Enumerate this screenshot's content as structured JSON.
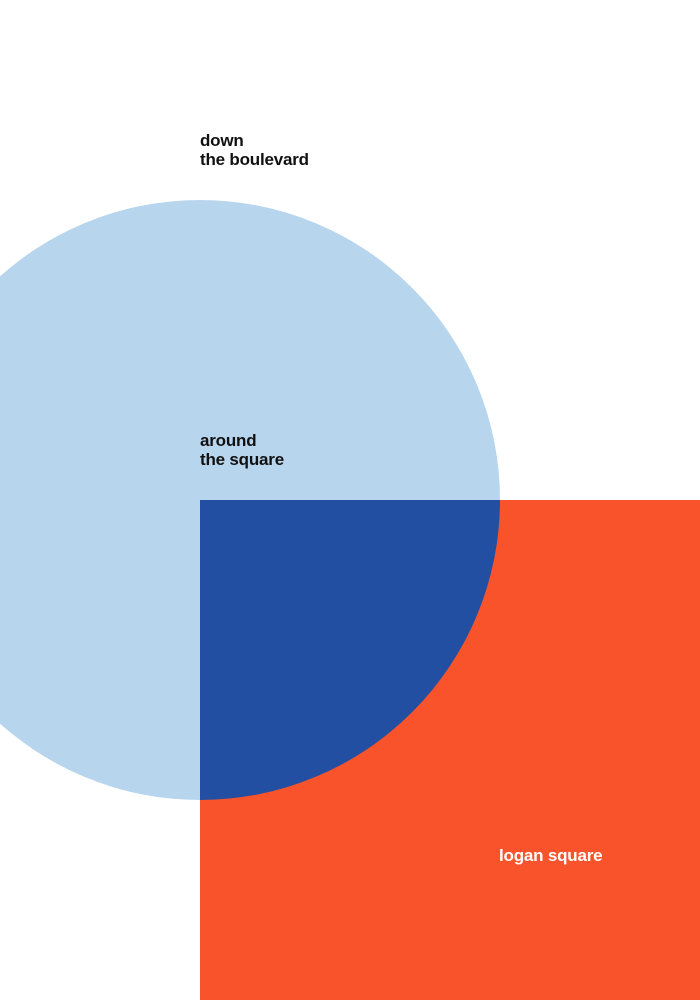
{
  "texts": {
    "top_line1": "down",
    "top_line2": "the boulevard",
    "middle_line1": "around",
    "middle_line2": "the square",
    "bottom": "logan square"
  },
  "colors": {
    "background": "#ffffff",
    "circle": "#b8d5ee",
    "square": "#f8532a",
    "overlap": "#234fa2"
  }
}
